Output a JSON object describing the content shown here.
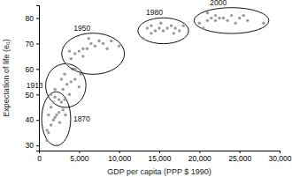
{
  "chart_data": {
    "type": "scatter",
    "x_label": "GDP per capita (PPP $ 1990)",
    "y_label": "Expectation of life (e₀)",
    "xlim": [
      0,
      30000
    ],
    "xticks": [
      0,
      {
        "value": 5000,
        "label": "5,000"
      },
      {
        "value": 10000,
        "label": "10,000"
      },
      {
        "value": 15000,
        "label": "15,000"
      },
      {
        "value": 20000,
        "label": "20,000"
      },
      {
        "value": 25000,
        "label": "25,000"
      },
      {
        "value": 30000,
        "label": "30,000"
      }
    ],
    "ylim": [
      28,
      85
    ],
    "yticks": [
      30,
      40,
      50,
      60,
      70,
      80
    ],
    "color": "#9a9a9a",
    "marker": "circle",
    "series": [
      {
        "name": "1870",
        "x": [
          1000,
          1200,
          1500,
          1800,
          2000,
          2200,
          2500,
          3000,
          1500,
          2800,
          3200,
          2000,
          1000,
          2600,
          3300,
          1200
        ],
        "values": [
          32,
          35,
          38,
          40,
          41,
          42,
          43,
          44,
          45,
          47,
          48,
          49,
          36,
          39,
          42,
          42
        ]
      },
      {
        "name": "1913",
        "x": [
          1500,
          2000,
          2500,
          3000,
          3500,
          4000,
          4500,
          5000,
          3200,
          4200,
          2800,
          5200,
          1800,
          3800
        ],
        "values": [
          50,
          52,
          48,
          52,
          54,
          55,
          56,
          53,
          58,
          60,
          56,
          58,
          47,
          50
        ]
      },
      {
        "name": "1950",
        "x": [
          3500,
          4000,
          4500,
          5000,
          5500,
          6000,
          6500,
          7000,
          8000,
          9000,
          10000,
          4500,
          5500,
          7500,
          8500,
          6200,
          3800
        ],
        "values": [
          62,
          64,
          66,
          67,
          68,
          68,
          70,
          69,
          70,
          71,
          69,
          60,
          65,
          71,
          68,
          72,
          67
        ]
      },
      {
        "name": "1980",
        "x": [
          13000,
          14000,
          14500,
          15000,
          15500,
          16000,
          16500,
          17000,
          18000,
          14000,
          15200,
          16800,
          13500,
          17500
        ],
        "values": [
          72,
          74,
          75,
          76,
          75,
          76,
          77,
          76,
          77,
          77,
          78,
          74,
          76,
          75
        ]
      },
      {
        "name": "2000",
        "x": [
          20000,
          21000,
          21500,
          22000,
          22500,
          23000,
          23500,
          24000,
          25000,
          26000,
          28000,
          20500,
          22000,
          24500,
          21000,
          25500
        ],
        "values": [
          78,
          79,
          80,
          81,
          80,
          80,
          79,
          81,
          80,
          79,
          78,
          76,
          79,
          78,
          82,
          81
        ]
      }
    ]
  }
}
